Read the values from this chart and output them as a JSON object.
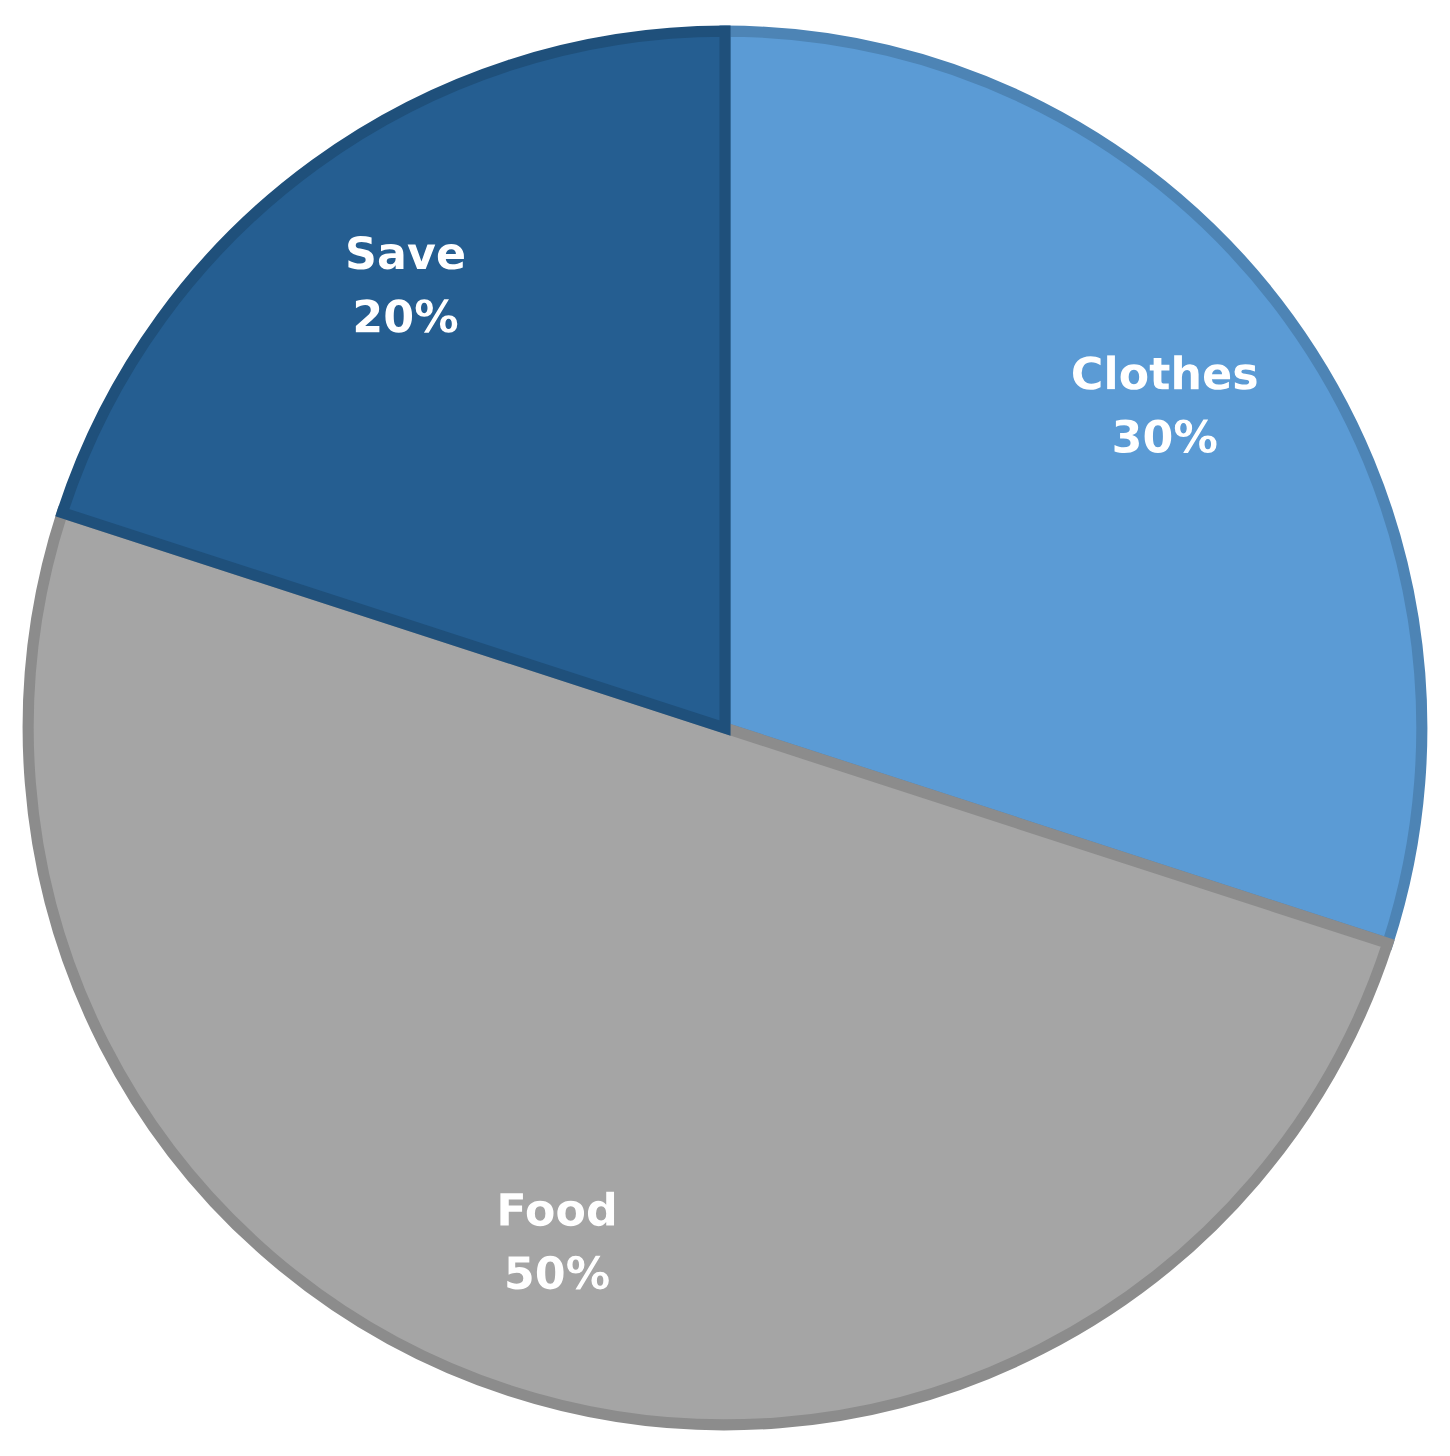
{
  "chart_data": {
    "type": "pie",
    "categories": [
      "Clothes",
      "Food",
      "Save"
    ],
    "values": [
      30,
      50,
      20
    ],
    "colors": [
      "#5b9bd5",
      "#a5a5a5",
      "#255e91"
    ],
    "value_labels": [
      "30%",
      "50%",
      "20%"
    ]
  }
}
